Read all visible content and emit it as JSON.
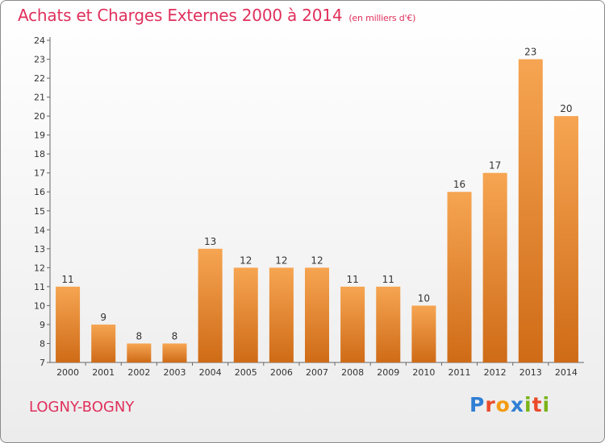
{
  "header": {
    "title": "Achats et Charges Externes 2000 à 2014",
    "subtitle": "(en milliers d'€)"
  },
  "footer": {
    "city": "LOGNY-BOGNY",
    "logo": [
      {
        "text": "P",
        "color": "#2f7fd4"
      },
      {
        "text": "r",
        "color": "#e94b2a"
      },
      {
        "text": "o",
        "color": "#f39c12"
      },
      {
        "text": "x",
        "color": "#2f7fd4"
      },
      {
        "text": "i",
        "color": "#7ab317"
      },
      {
        "text": "t",
        "color": "#e94b2a"
      },
      {
        "text": "i",
        "color": "#7ab317"
      }
    ]
  },
  "chart_data": {
    "type": "bar",
    "title": "Achats et Charges Externes 2000 à 2014",
    "subtitle": "(en milliers d'€)",
    "categories": [
      "2000",
      "2001",
      "2002",
      "2003",
      "2004",
      "2005",
      "2006",
      "2007",
      "2008",
      "2009",
      "2010",
      "2011",
      "2012",
      "2013",
      "2014"
    ],
    "values": [
      11,
      9,
      8,
      8,
      13,
      12,
      12,
      12,
      11,
      11,
      10,
      16,
      17,
      23,
      20
    ],
    "ylim": [
      7,
      24
    ],
    "yticks": [
      7,
      8,
      9,
      10,
      11,
      12,
      13,
      14,
      15,
      16,
      17,
      18,
      19,
      20,
      21,
      22,
      23,
      24
    ],
    "grid": false,
    "colors": {
      "bar_top": "#f6a552",
      "bar_bottom": "#cf6b17",
      "axis": "#666666"
    }
  }
}
